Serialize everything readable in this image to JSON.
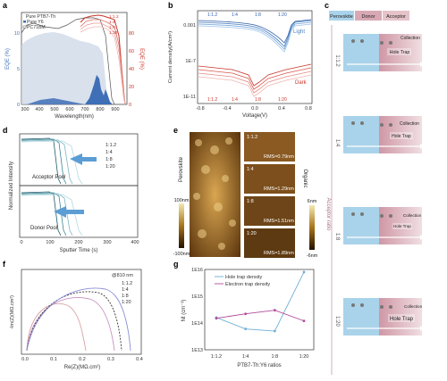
{
  "panels": {
    "a": {
      "letter": "a",
      "legend": [
        "Pure PTB7-Th",
        "Pure Y6",
        "PC71BM"
      ],
      "xlabel": "Wavelength(nm)",
      "ylabel_left": "EQE (%)",
      "ylabel_right": "EQE (%)",
      "xticks": [
        "300",
        "400",
        "500",
        "600",
        "700",
        "800",
        "900"
      ],
      "yticks_left": [
        "0",
        "5",
        "10"
      ],
      "yticks_right": [
        "0",
        "20",
        "40",
        "60",
        "80"
      ],
      "ratio_legend": [
        "1:1.2",
        "1:4",
        "1:8",
        "1:20"
      ]
    },
    "b": {
      "letter": "b",
      "legend_top": [
        "1:1.2",
        "1:4",
        "1:8",
        "1:20"
      ],
      "legend_bottom": [
        "1:1.2",
        "1:4",
        "1:8",
        "1:20"
      ],
      "light_label": "Light",
      "dark_label": "Dark",
      "xlabel": "Voltage(V)",
      "ylabel": "Current density(A/cm²)",
      "xticks": [
        "-0.8",
        "-0.4",
        "0.0",
        "0.4",
        "0.8"
      ],
      "yticks": [
        "0.001",
        "1E-7",
        "1E-11"
      ]
    },
    "c": {
      "letter": "c",
      "header": [
        "Perovskite",
        "Donor",
        "Acceptor"
      ],
      "ratio_axis_label": "Acceptor ratio",
      "ratios": [
        "1:1.2",
        "1:4",
        "1:8",
        "1:20"
      ],
      "collection": "Collection",
      "hole_trap": "Hole Trap",
      "colors": {
        "perovskite": "#a9d3ea",
        "donor": "#d8a9b4",
        "acceptor": "#e6c3c9"
      }
    },
    "d": {
      "letter": "d",
      "ylabel": "Normalized Intensity",
      "xlabel": "Sputter Time (s)",
      "xticks": [
        "0",
        "100",
        "200",
        "300",
        "400"
      ],
      "top_label": "Acceptor Pool",
      "bottom_label": "Donor Pool",
      "ratios": [
        "1:1.2",
        "1:4",
        "1:8",
        "1:20"
      ]
    },
    "e": {
      "letter": "e",
      "left_label": "Perovskite",
      "right_label": "Organic",
      "scale_left_top": "100nm",
      "scale_left_bottom": "-100nm",
      "scale_right_top": "6nm",
      "scale_right_bottom": "-6nm",
      "tiles": [
        {
          "ratio": "1:1.2",
          "rms": "RMS=0.79nm"
        },
        {
          "ratio": "1:4",
          "rms": "RMS=1.29nm"
        },
        {
          "ratio": "1:8",
          "rms": "RMS=1.51nm"
        },
        {
          "ratio": "1:20",
          "rms": "RMS=1.89nm"
        }
      ]
    },
    "f": {
      "letter": "f",
      "annotation": "@810 nm",
      "legend": [
        "1:1.2",
        "1:4",
        "1:8",
        "1:20"
      ],
      "xlabel": "Re(Z)(MΩ.cm²)",
      "ylabel": "-Im(Z)(MΩ.cm²)",
      "xticks": [
        "0.0",
        "0.1",
        "0.2",
        "0.3",
        "0.4"
      ]
    },
    "g": {
      "letter": "g",
      "legend": [
        "Hole trap density",
        "Electron trap density"
      ],
      "xlabel": "PTB7-Th:Y6 ratios",
      "ylabel": "Nt (cm⁻³)",
      "yticks": [
        "1E13",
        "1E14",
        "1E15",
        "1E16"
      ]
    }
  },
  "chart_data": [
    {
      "type": "line",
      "panel": "g",
      "categories": [
        "1:1.2",
        "1:4",
        "1:8",
        "1:20"
      ],
      "series": [
        {
          "name": "Hole trap density",
          "values": [
            160000000000000.0,
            60000000000000.0,
            50000000000000.0,
            8000000000000000.0
          ],
          "color": "#6aaed6"
        },
        {
          "name": "Electron trap density",
          "values": [
            150000000000000.0,
            220000000000000.0,
            300000000000000.0,
            120000000000000.0
          ],
          "color": "#b04a9a"
        }
      ],
      "log_y": true,
      "ylim": [
        10000000000000.0,
        1e+16
      ]
    }
  ]
}
